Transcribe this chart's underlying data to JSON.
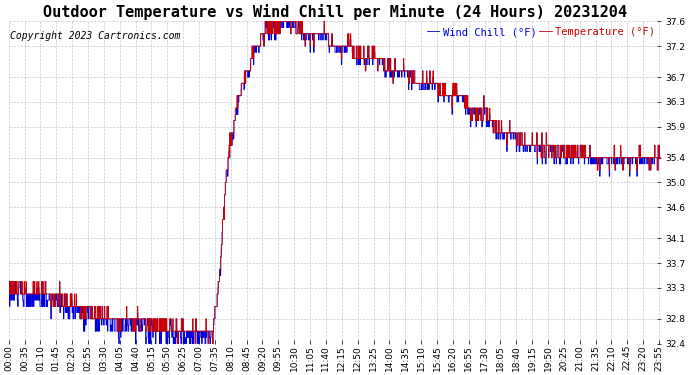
{
  "title": "Outdoor Temperature vs Wind Chill per Minute (24 Hours) 20231204",
  "copyright": "Copyright 2023 Cartronics.com",
  "legend_windchill": "Wind Chill (°F)",
  "legend_temp": "Temperature (°F)",
  "ylim_min": 32.4,
  "ylim_max": 37.6,
  "yticks": [
    32.4,
    32.8,
    33.3,
    33.7,
    34.1,
    34.6,
    35.0,
    35.4,
    35.9,
    36.3,
    36.7,
    37.2,
    37.6
  ],
  "background_color": "#ffffff",
  "grid_color": "#bbbbbb",
  "windchill_color": "#0000dd",
  "temp_color": "#cc0000",
  "title_fontsize": 11,
  "copyright_fontsize": 7,
  "tick_fontsize": 6.5,
  "legend_fontsize": 7.5
}
